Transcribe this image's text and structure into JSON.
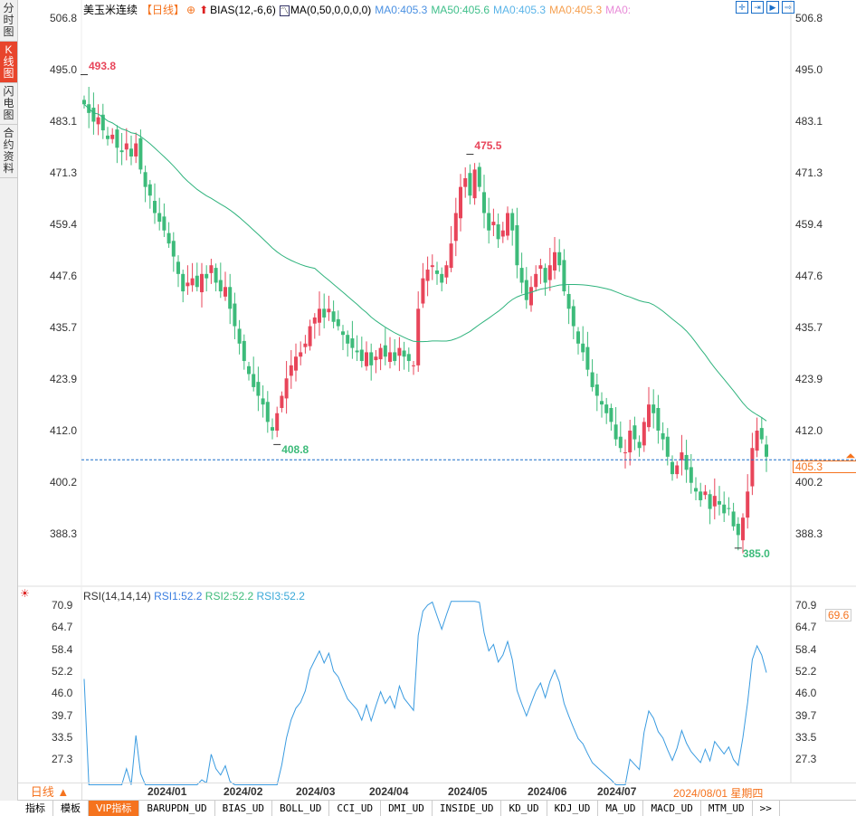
{
  "sidebar": {
    "items": [
      {
        "label": "分时图"
      },
      {
        "label": "K线图",
        "active": true
      },
      {
        "label": "闪电图"
      },
      {
        "label": "合约资料"
      }
    ]
  },
  "header": {
    "title": "美玉米连续",
    "period": "【日线】",
    "indicator1": "BIAS(12,-6,6)",
    "indicator2": "MA(0,50,0,0,0,0)",
    "ma": [
      {
        "label": "MA0:405.3",
        "color": "#4a90e2"
      },
      {
        "label": "MA50:405.6",
        "color": "#3fbf8a"
      },
      {
        "label": "MA0:405.3",
        "color": "#5ab4e8"
      },
      {
        "label": "MA0:405.3",
        "color": "#f5a050"
      },
      {
        "label": "MA0:",
        "color": "#e88ad8"
      }
    ]
  },
  "toolbar_icons": [
    "crosshair-icon",
    "zoom-in-icon",
    "play-icon",
    "end-icon"
  ],
  "price_axis": [
    "506.8",
    "495.0",
    "483.1",
    "471.3",
    "459.4",
    "447.6",
    "435.7",
    "423.9",
    "412.0",
    "400.2",
    "388.3"
  ],
  "current_price": "405.3",
  "annotations": {
    "high1": "493.8",
    "high2": "475.5",
    "low1": "408.8",
    "low2": "385.0"
  },
  "rsi": {
    "title": "RSI(14,14,14)",
    "rsi1": "RSI1:52.2",
    "rsi2": "RSI2:52.2",
    "rsi3": "RSI3:52.2",
    "axis": [
      "70.9",
      "64.7",
      "58.4",
      "52.2",
      "46.0",
      "39.7",
      "33.5",
      "27.3"
    ],
    "current": "69.6"
  },
  "dates": [
    "2024/01",
    "2024/02",
    "2024/03",
    "2024/04",
    "2024/05",
    "2024/06",
    "2024/07"
  ],
  "current_date": "2024/08/01 星期四",
  "period_button": "日线 ▲",
  "bottom_tabs": [
    "指标",
    "模板",
    "VIP指标",
    "BARUPDN_UD",
    "BIAS_UD",
    "BOLL_UD",
    "CCI_UD",
    "DMI_UD",
    "INSIDE_UD",
    "KD_UD",
    "KDJ_UD",
    "MA_UD",
    "MACD_UD",
    "MTM_UD",
    ">>"
  ],
  "colors": {
    "up": "#e8455a",
    "down": "#3dbb7a",
    "ma50": "#2fb37d",
    "rsi": "#3a9be0",
    "accent": "#f5731e"
  },
  "chart_data": {
    "type": "candlestick",
    "closes": [
      487,
      485,
      483,
      484,
      481,
      479,
      480,
      477,
      476,
      478,
      475,
      478,
      472,
      468,
      466,
      462,
      460,
      458,
      455,
      452,
      448,
      444,
      446,
      447,
      445,
      448,
      447,
      450,
      446,
      444,
      445,
      440,
      436,
      432,
      428,
      425,
      422,
      420,
      418,
      414,
      412,
      416,
      420,
      424,
      427,
      429,
      430,
      432,
      436,
      438,
      440,
      438,
      440,
      437,
      436,
      434,
      432,
      431,
      430,
      428,
      430,
      427,
      429,
      431,
      429,
      430,
      428,
      431,
      429,
      428,
      427,
      440,
      447,
      449,
      450,
      448,
      446,
      450,
      455,
      462,
      468,
      470,
      466,
      472,
      468,
      462,
      458,
      460,
      456,
      458,
      462,
      458,
      450,
      446,
      442,
      445,
      448,
      450,
      446,
      450,
      453,
      450,
      444,
      440,
      436,
      432,
      430,
      426,
      422,
      420,
      418,
      416,
      414,
      410,
      408,
      407,
      412,
      410,
      408,
      414,
      418,
      416,
      412,
      410,
      406,
      402,
      404,
      407,
      403,
      400,
      398,
      396,
      398,
      394,
      397,
      395,
      393,
      394,
      390,
      388,
      392,
      398,
      408,
      412,
      410,
      406
    ],
    "ylim": [
      382,
      510
    ]
  }
}
